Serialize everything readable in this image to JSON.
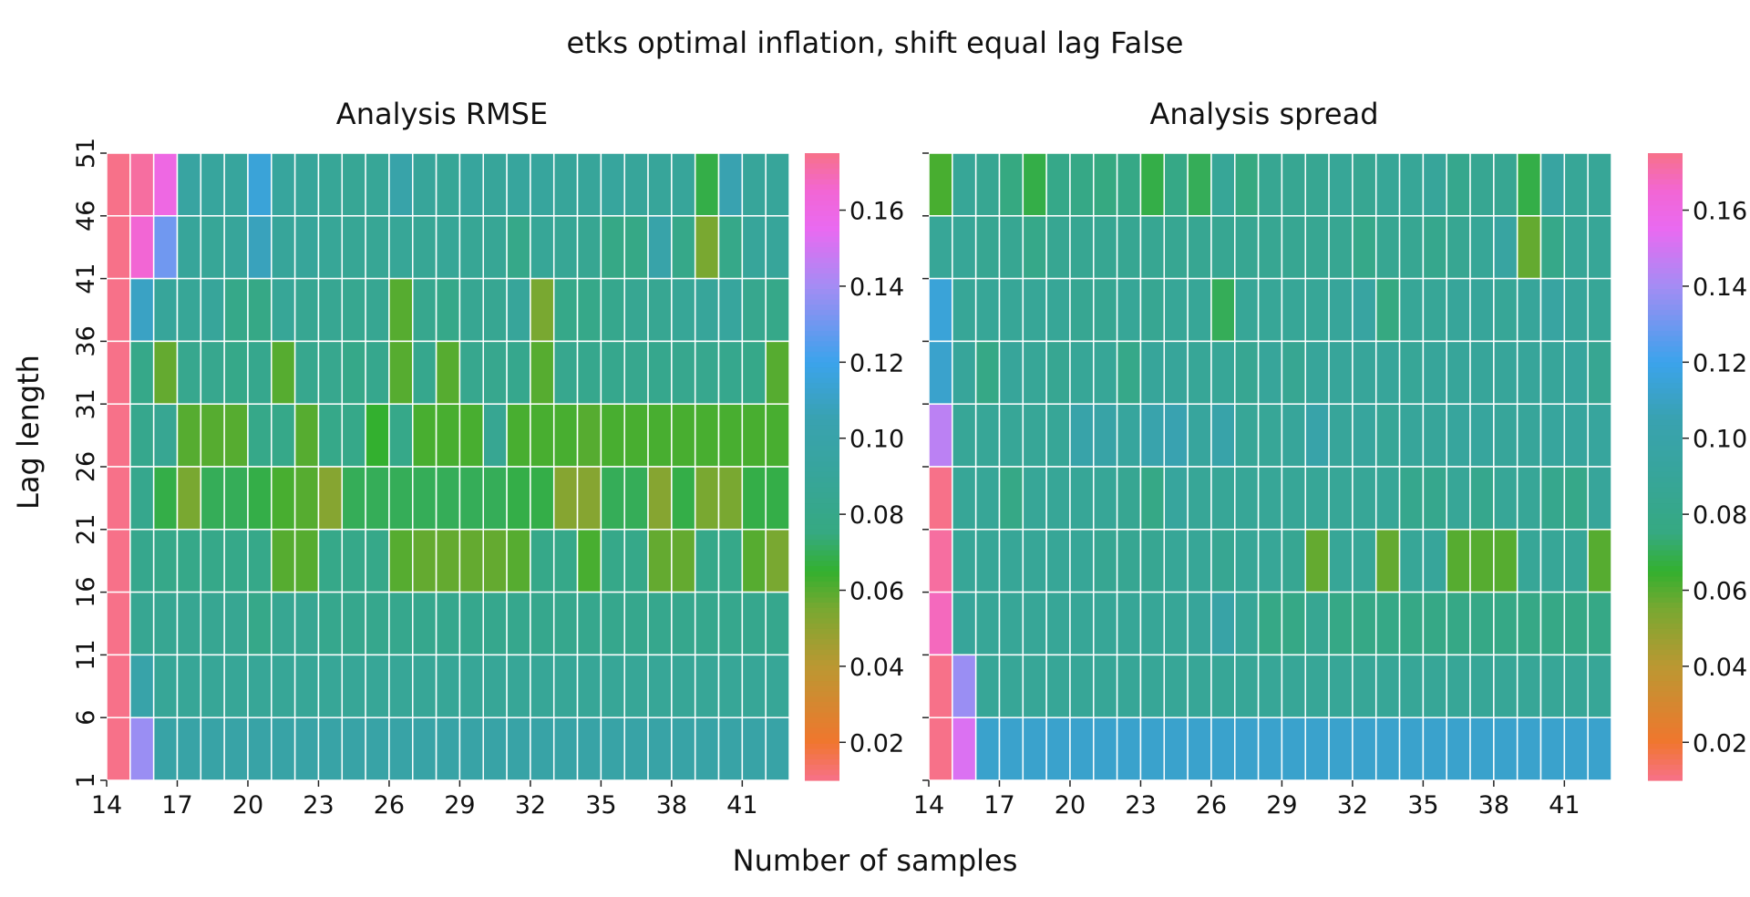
{
  "figure": {
    "suptitle": "etks optimal inflation, shift equal lag False",
    "xlabel": "Number of samples",
    "ylabel": "Lag length"
  },
  "chart_data": [
    {
      "type": "heatmap",
      "title": "Analysis RMSE",
      "x": [
        14,
        15,
        16,
        17,
        18,
        19,
        20,
        21,
        22,
        23,
        24,
        25,
        26,
        27,
        28,
        29,
        30,
        31,
        32,
        33,
        34,
        35,
        36,
        37,
        38,
        39,
        40,
        41,
        42
      ],
      "x_tick_labels": [
        "14",
        "17",
        "20",
        "23",
        "26",
        "29",
        "32",
        "35",
        "38",
        "41"
      ],
      "y": [
        46,
        41,
        36,
        31,
        26,
        21,
        16,
        11,
        6,
        1
      ],
      "y_tick_labels": [
        "51",
        "46",
        "41",
        "36",
        "31",
        "26",
        "21",
        "16",
        "11",
        "6",
        "1"
      ],
      "colorbar": {
        "vmin": 0.01,
        "vmax": 0.175,
        "ticks": [
          0.02,
          0.04,
          0.06,
          0.08,
          0.1,
          0.12,
          0.14,
          0.16
        ],
        "tick_labels": [
          "0.02",
          "0.04",
          "0.06",
          "0.08",
          "0.10",
          "0.12",
          "0.14",
          "0.16"
        ]
      },
      "values": [
        [
          0.175,
          0.172,
          0.16,
          0.095,
          0.092,
          0.092,
          0.115,
          0.092,
          0.09,
          0.088,
          0.087,
          0.088,
          0.1,
          0.09,
          0.088,
          0.092,
          0.09,
          0.092,
          0.092,
          0.09,
          0.09,
          0.092,
          0.09,
          0.09,
          0.09,
          0.068,
          0.105,
          0.09,
          0.09
        ],
        [
          0.175,
          0.165,
          0.13,
          0.09,
          0.088,
          0.09,
          0.108,
          0.09,
          0.09,
          0.088,
          0.087,
          0.087,
          0.088,
          0.087,
          0.088,
          0.087,
          0.087,
          0.08,
          0.088,
          0.087,
          0.085,
          0.078,
          0.078,
          0.1,
          0.08,
          0.055,
          0.08,
          0.09,
          0.09
        ],
        [
          0.175,
          0.11,
          0.09,
          0.088,
          0.09,
          0.08,
          0.078,
          0.088,
          0.085,
          0.085,
          0.084,
          0.085,
          0.06,
          0.083,
          0.08,
          0.085,
          0.085,
          0.09,
          0.055,
          0.08,
          0.08,
          0.082,
          0.085,
          0.085,
          0.088,
          0.09,
          0.092,
          0.083,
          0.08
        ],
        [
          0.175,
          0.08,
          0.058,
          0.083,
          0.083,
          0.08,
          0.082,
          0.06,
          0.083,
          0.083,
          0.08,
          0.082,
          0.06,
          0.082,
          0.06,
          0.083,
          0.083,
          0.082,
          0.06,
          0.083,
          0.082,
          0.082,
          0.083,
          0.082,
          0.083,
          0.083,
          0.082,
          0.08,
          0.06
        ],
        [
          0.175,
          0.082,
          0.085,
          0.06,
          0.06,
          0.06,
          0.08,
          0.08,
          0.06,
          0.08,
          0.08,
          0.065,
          0.08,
          0.062,
          0.062,
          0.062,
          0.085,
          0.062,
          0.062,
          0.062,
          0.06,
          0.062,
          0.062,
          0.062,
          0.062,
          0.062,
          0.062,
          0.062,
          0.062
        ],
        [
          0.175,
          0.082,
          0.068,
          0.055,
          0.07,
          0.07,
          0.068,
          0.062,
          0.06,
          0.052,
          0.07,
          0.07,
          0.07,
          0.07,
          0.07,
          0.07,
          0.07,
          0.068,
          0.068,
          0.052,
          0.052,
          0.07,
          0.07,
          0.052,
          0.068,
          0.055,
          0.055,
          0.068,
          0.068
        ],
        [
          0.175,
          0.082,
          0.08,
          0.08,
          0.08,
          0.08,
          0.08,
          0.06,
          0.06,
          0.08,
          0.08,
          0.08,
          0.06,
          0.058,
          0.058,
          0.058,
          0.058,
          0.06,
          0.08,
          0.08,
          0.062,
          0.08,
          0.08,
          0.058,
          0.058,
          0.08,
          0.08,
          0.06,
          0.055
        ],
        [
          0.175,
          0.085,
          0.085,
          0.085,
          0.085,
          0.085,
          0.08,
          0.085,
          0.085,
          0.082,
          0.082,
          0.082,
          0.082,
          0.082,
          0.082,
          0.082,
          0.082,
          0.082,
          0.082,
          0.082,
          0.082,
          0.082,
          0.082,
          0.082,
          0.082,
          0.082,
          0.082,
          0.082,
          0.082
        ],
        [
          0.175,
          0.1,
          0.088,
          0.088,
          0.088,
          0.088,
          0.088,
          0.088,
          0.088,
          0.088,
          0.088,
          0.088,
          0.088,
          0.088,
          0.088,
          0.088,
          0.088,
          0.088,
          0.088,
          0.088,
          0.088,
          0.088,
          0.088,
          0.088,
          0.088,
          0.088,
          0.088,
          0.088,
          0.088
        ],
        [
          0.175,
          0.138,
          0.098,
          0.098,
          0.098,
          0.098,
          0.098,
          0.098,
          0.098,
          0.098,
          0.098,
          0.098,
          0.098,
          0.098,
          0.098,
          0.098,
          0.098,
          0.098,
          0.098,
          0.098,
          0.098,
          0.098,
          0.098,
          0.098,
          0.098,
          0.098,
          0.098,
          0.098,
          0.098
        ]
      ]
    },
    {
      "type": "heatmap",
      "title": "Analysis spread",
      "x": [
        14,
        15,
        16,
        17,
        18,
        19,
        20,
        21,
        22,
        23,
        24,
        25,
        26,
        27,
        28,
        29,
        30,
        31,
        32,
        33,
        34,
        35,
        36,
        37,
        38,
        39,
        40,
        41,
        42
      ],
      "x_tick_labels": [
        "14",
        "17",
        "20",
        "23",
        "26",
        "29",
        "32",
        "35",
        "38",
        "41"
      ],
      "y": [
        46,
        41,
        36,
        31,
        26,
        21,
        16,
        11,
        6,
        1
      ],
      "colorbar": {
        "vmin": 0.01,
        "vmax": 0.175,
        "ticks": [
          0.02,
          0.04,
          0.06,
          0.08,
          0.1,
          0.12,
          0.14,
          0.16
        ],
        "tick_labels": [
          "0.02",
          "0.04",
          "0.06",
          "0.08",
          "0.10",
          "0.12",
          "0.14",
          "0.16"
        ]
      },
      "values": [
        [
          0.062,
          0.088,
          0.085,
          0.075,
          0.068,
          0.08,
          0.078,
          0.075,
          0.078,
          0.068,
          0.078,
          0.07,
          0.088,
          0.075,
          0.085,
          0.085,
          0.085,
          0.088,
          0.085,
          0.088,
          0.088,
          0.09,
          0.082,
          0.085,
          0.085,
          0.068,
          0.095,
          0.088,
          0.088
        ],
        [
          0.088,
          0.088,
          0.085,
          0.085,
          0.08,
          0.085,
          0.085,
          0.085,
          0.085,
          0.085,
          0.085,
          0.085,
          0.085,
          0.085,
          0.085,
          0.085,
          0.085,
          0.085,
          0.08,
          0.085,
          0.085,
          0.082,
          0.085,
          0.088,
          0.095,
          0.058,
          0.08,
          0.088,
          0.088
        ],
        [
          0.115,
          0.088,
          0.088,
          0.088,
          0.088,
          0.088,
          0.085,
          0.085,
          0.088,
          0.085,
          0.088,
          0.088,
          0.07,
          0.088,
          0.088,
          0.088,
          0.088,
          0.09,
          0.095,
          0.075,
          0.088,
          0.088,
          0.09,
          0.09,
          0.088,
          0.09,
          0.095,
          0.09,
          0.088
        ],
        [
          0.112,
          0.09,
          0.078,
          0.09,
          0.088,
          0.085,
          0.088,
          0.088,
          0.08,
          0.09,
          0.09,
          0.088,
          0.088,
          0.085,
          0.09,
          0.085,
          0.09,
          0.09,
          0.09,
          0.09,
          0.088,
          0.09,
          0.09,
          0.09,
          0.09,
          0.09,
          0.09,
          0.092,
          0.085
        ],
        [
          0.145,
          0.088,
          0.088,
          0.088,
          0.088,
          0.088,
          0.1,
          0.098,
          0.092,
          0.102,
          0.105,
          0.092,
          0.1,
          0.088,
          0.088,
          0.09,
          0.1,
          0.09,
          0.092,
          0.088,
          0.09,
          0.09,
          0.092,
          0.092,
          0.09,
          0.09,
          0.092,
          0.092,
          0.092
        ],
        [
          0.175,
          0.088,
          0.088,
          0.078,
          0.088,
          0.088,
          0.088,
          0.088,
          0.085,
          0.078,
          0.092,
          0.088,
          0.088,
          0.088,
          0.088,
          0.088,
          0.088,
          0.088,
          0.088,
          0.088,
          0.082,
          0.082,
          0.088,
          0.082,
          0.088,
          0.088,
          0.082,
          0.08,
          0.09
        ],
        [
          0.172,
          0.088,
          0.088,
          0.088,
          0.088,
          0.088,
          0.088,
          0.085,
          0.085,
          0.085,
          0.088,
          0.088,
          0.085,
          0.088,
          0.088,
          0.085,
          0.058,
          0.088,
          0.088,
          0.058,
          0.088,
          0.09,
          0.06,
          0.06,
          0.06,
          0.088,
          0.088,
          0.088,
          0.06
        ],
        [
          0.168,
          0.09,
          0.088,
          0.088,
          0.088,
          0.088,
          0.088,
          0.088,
          0.088,
          0.088,
          0.088,
          0.09,
          0.098,
          0.088,
          0.078,
          0.078,
          0.085,
          0.078,
          0.078,
          0.078,
          0.078,
          0.078,
          0.078,
          0.078,
          0.078,
          0.078,
          0.078,
          0.078,
          0.078
        ],
        [
          0.175,
          0.138,
          0.088,
          0.088,
          0.088,
          0.088,
          0.088,
          0.088,
          0.088,
          0.088,
          0.088,
          0.088,
          0.088,
          0.088,
          0.088,
          0.088,
          0.088,
          0.088,
          0.088,
          0.088,
          0.088,
          0.088,
          0.088,
          0.088,
          0.088,
          0.088,
          0.088,
          0.088,
          0.088
        ],
        [
          0.175,
          0.152,
          0.112,
          0.112,
          0.112,
          0.112,
          0.112,
          0.112,
          0.112,
          0.112,
          0.112,
          0.112,
          0.112,
          0.112,
          0.112,
          0.112,
          0.112,
          0.112,
          0.112,
          0.112,
          0.112,
          0.112,
          0.112,
          0.112,
          0.112,
          0.112,
          0.112,
          0.112,
          0.112
        ]
      ]
    }
  ]
}
